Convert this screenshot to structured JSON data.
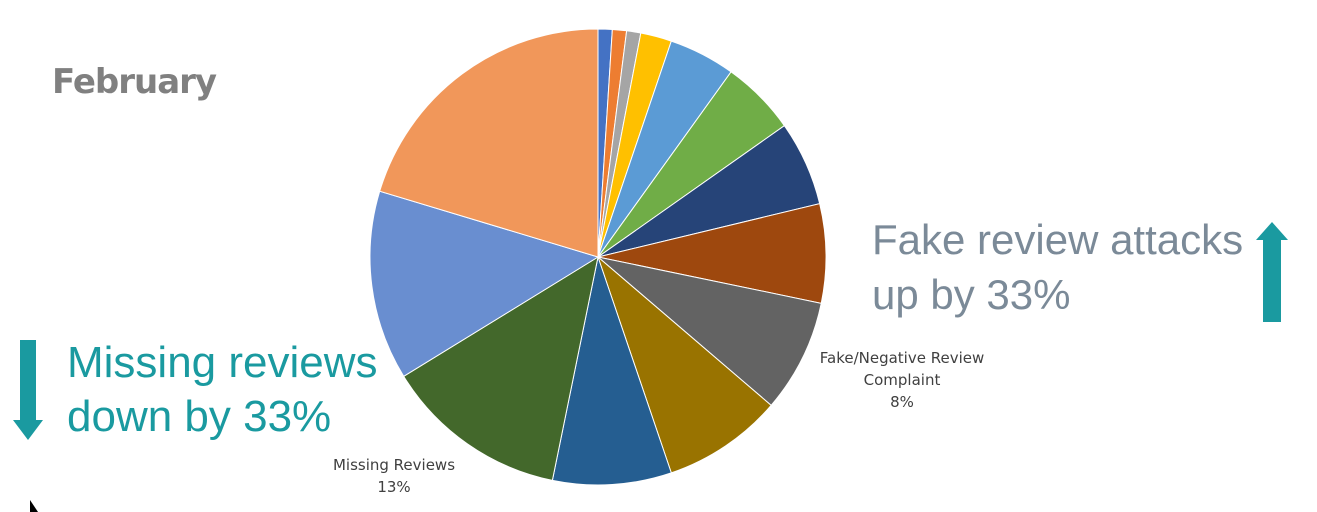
{
  "chart_data": {
    "type": "pie",
    "title": "February",
    "categories": [
      null,
      null,
      null,
      null,
      null,
      null,
      null,
      null,
      "Fake/Negative Review Complaint",
      null,
      null,
      "Missing Reviews",
      null,
      null
    ],
    "values": [
      1,
      1,
      1,
      2.2,
      4.7,
      5.3,
      6,
      7,
      8,
      8.5,
      8.4,
      13,
      13.4,
      20.3
    ],
    "value_labels": [
      null,
      null,
      null,
      null,
      null,
      null,
      null,
      null,
      "8%",
      null,
      null,
      "13%",
      null,
      null
    ],
    "colors": [
      "#4472c4",
      "#ed7d31",
      "#a5a5a5",
      "#ffc000",
      "#5b9bd5",
      "#70ad47",
      "#264478",
      "#9e480e",
      "#636363",
      "#997300",
      "#255e91",
      "#43682b",
      "#698ed0",
      "#f1975a"
    ],
    "annotations": [
      "Fake review attacks up by 33%",
      "Missing reviews down by 33%"
    ]
  }
}
